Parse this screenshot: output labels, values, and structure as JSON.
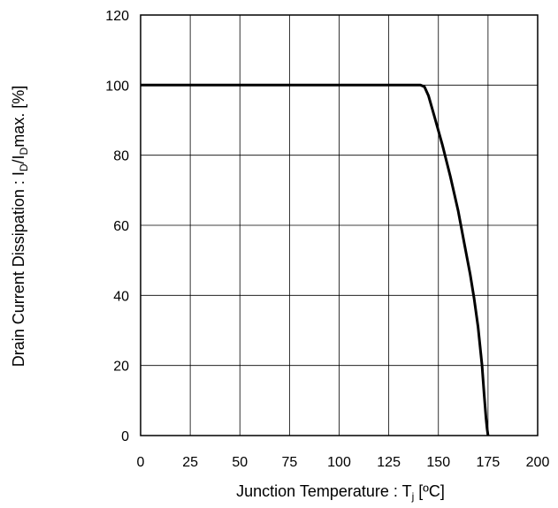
{
  "chart_data": {
    "type": "line",
    "xlabel": {
      "prefix": "Junction Temperature : T",
      "sub": "j",
      "suffix": " [ºC]"
    },
    "ylabel": {
      "p1": "Drain Current Dissipation : I",
      "s1": "D",
      "p2": "/I",
      "s2": "D",
      "p3": "max. [%]"
    },
    "xlim": [
      0,
      200
    ],
    "ylim": [
      0,
      120
    ],
    "xticks": [
      0,
      25,
      50,
      75,
      100,
      125,
      150,
      175,
      200
    ],
    "yticks": [
      0,
      20,
      40,
      60,
      80,
      100,
      120
    ],
    "grid": true,
    "series": [
      {
        "color": "#000000",
        "x": [
          0,
          141,
          143,
          145,
          148,
          152,
          156,
          160,
          163,
          166,
          168,
          170,
          172,
          173,
          174,
          174.5,
          175
        ],
        "y": [
          100,
          100,
          99.5,
          97,
          91,
          83,
          74,
          64,
          55,
          46,
          39,
          31,
          20,
          12,
          5,
          2,
          0
        ]
      }
    ]
  }
}
